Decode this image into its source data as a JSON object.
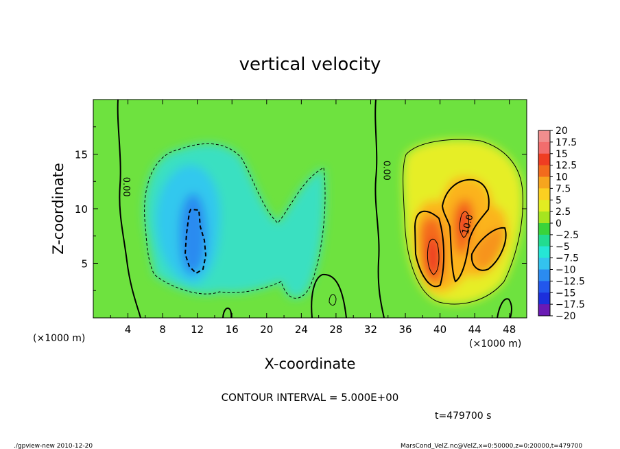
{
  "footer": {
    "left": "./gpview-new  2010-12-20",
    "right": "MarsCond_VelZ.nc@VelZ,x=0:50000,z=0:20000,t=479700"
  },
  "chart_data": {
    "type": "heatmap",
    "title": "vertical velocity",
    "xlabel": "X-coordinate",
    "ylabel": "Z-coordinate",
    "x_unit_label": "(×1000 m)",
    "y_unit_label": "(×1000 m)",
    "xlim": [
      0,
      50
    ],
    "ylim": [
      0,
      20
    ],
    "x_ticks": [
      4,
      8,
      12,
      16,
      20,
      24,
      28,
      32,
      36,
      40,
      44,
      48
    ],
    "y_ticks": [
      5,
      10,
      15
    ],
    "contour_interval_text": "CONTOUR INTERVAL = 5.000E+00",
    "time_text": "t=479700 s",
    "contour_labels": [
      {
        "text": "0.00",
        "x": 3.5,
        "z": 12.0
      },
      {
        "text": "0.00",
        "x": 33.5,
        "z": 13.5
      },
      {
        "text": "10.0",
        "x": 43.5,
        "z": 8.5
      }
    ],
    "colorbar": {
      "levels": [
        "20",
        "17.5",
        "15",
        "12.5",
        "10",
        "7.5",
        "5",
        "2.5",
        "0",
        "−2.5",
        "−5",
        "−7.5",
        "−10",
        "−12.5",
        "−15",
        "−17.5",
        "−20"
      ],
      "colors": [
        "#f08e8e",
        "#f26d6d",
        "#ef3d22",
        "#f26b1d",
        "#f7a51e",
        "#fbd021",
        "#e2ec22",
        "#a6e51f",
        "#39d43a",
        "#22dc90",
        "#25e6d6",
        "#33c3ee",
        "#2b8bf0",
        "#2257ec",
        "#1c2fdc",
        "#1c1cb4",
        "#6a1ab4"
      ]
    },
    "features": [
      {
        "sign": "negative",
        "peak": -10,
        "x": 11.8,
        "z": 7.0
      },
      {
        "sign": "positive",
        "peak": 12.5,
        "x": 39.0,
        "z": 5.8
      },
      {
        "sign": "positive",
        "peak": 12.5,
        "x": 42.5,
        "z": 8.5
      },
      {
        "sign": "positive",
        "peak": 10,
        "x": 45.5,
        "z": 6.5
      }
    ]
  }
}
